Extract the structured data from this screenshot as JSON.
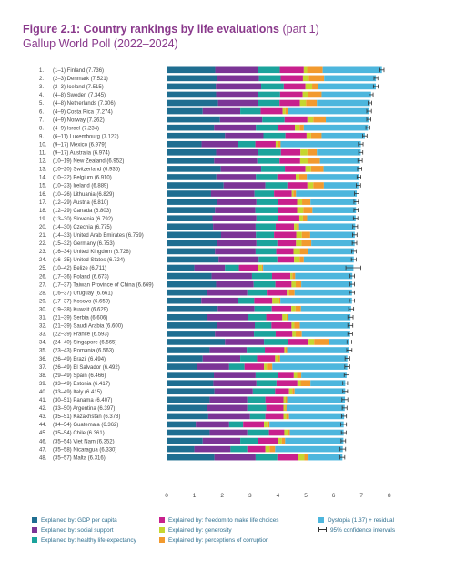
{
  "header": {
    "title_bold": "Figure 2.1: Country rankings by life evaluations",
    "title_rest": "(part 1)",
    "subtitle": "Gallup World Poll (2022–2024)"
  },
  "legend": [
    {
      "label": "Explained by: GDP per capita",
      "color": "#1f6e91"
    },
    {
      "label": "Explained by: social support",
      "color": "#7b3596"
    },
    {
      "label": "Explained by: healthy life expectancy",
      "color": "#1ba39c"
    },
    {
      "label": "Explained by: freedom to make life choices",
      "color": "#c8208d"
    },
    {
      "label": "Explained by: generosity",
      "color": "#c6d630"
    },
    {
      "label": "Explained by: perceptions of corruption",
      "color": "#f29a2e"
    },
    {
      "label": "Dystopia (1.37) + residual",
      "color": "#4db6dd"
    },
    {
      "label": "95% confidence intervals",
      "color": "#333333"
    }
  ],
  "chart_data": {
    "type": "bar",
    "stacked": true,
    "orientation": "horizontal",
    "xlim": [
      0,
      8
    ],
    "xticks": [
      "0",
      "1",
      "2",
      "3",
      "4",
      "5",
      "6",
      "7",
      "8"
    ],
    "component_colors": [
      "#1f6e91",
      "#7b3596",
      "#1ba39c",
      "#c8208d",
      "#c6d630",
      "#f29a2e",
      "#4db6dd"
    ],
    "categories": [
      {
        "rank": "1.",
        "label": "(1–1) Finland (7.736)",
        "value": 7.736,
        "ci": [
          7.66,
          7.81
        ],
        "parts": [
          1.75,
          1.55,
          0.77,
          0.86,
          0.12,
          0.56
        ]
      },
      {
        "rank": "2.",
        "label": "(2–3) Denmark (7.521)",
        "value": 7.521,
        "ci": [
          7.45,
          7.59
        ],
        "parts": [
          1.82,
          1.5,
          0.78,
          0.8,
          0.21,
          0.55
        ]
      },
      {
        "rank": "3.",
        "label": "(2–3) Iceland (7.515)",
        "value": 7.515,
        "ci": [
          7.43,
          7.6
        ],
        "parts": [
          1.77,
          1.63,
          0.81,
          0.78,
          0.24,
          0.2
        ]
      },
      {
        "rank": "4.",
        "label": "(4–8) Sweden (7.345)",
        "value": 7.345,
        "ci": [
          7.27,
          7.42
        ],
        "parts": [
          1.78,
          1.5,
          0.8,
          0.81,
          0.2,
          0.48
        ]
      },
      {
        "rank": "5.",
        "label": "(4–8) Netherlands (7.306)",
        "value": 7.306,
        "ci": [
          7.24,
          7.37
        ],
        "parts": [
          1.85,
          1.43,
          0.78,
          0.73,
          0.22,
          0.39
        ]
      },
      {
        "rank": "6.",
        "label": "(4–9) Costa Rica (7.274)",
        "value": 7.274,
        "ci": [
          7.19,
          7.36
        ],
        "parts": [
          1.3,
          1.35,
          0.73,
          0.79,
          0.1,
          0.09
        ]
      },
      {
        "rank": "7.",
        "label": "(4–9) Norway (7.262)",
        "value": 7.262,
        "ci": [
          7.19,
          7.34
        ],
        "parts": [
          1.92,
          1.52,
          0.8,
          0.82,
          0.21,
          0.45
        ]
      },
      {
        "rank": "8.",
        "label": "(4–9) Israel (7.234)",
        "value": 7.234,
        "ci": [
          7.16,
          7.3
        ],
        "parts": [
          1.71,
          1.5,
          0.8,
          0.6,
          0.17,
          0.15
        ]
      },
      {
        "rank": "9.",
        "label": "(6–11) Luxembourg (7.122)",
        "value": 7.122,
        "ci": [
          7.04,
          7.2
        ],
        "parts": [
          2.1,
          1.38,
          0.79,
          0.76,
          0.16,
          0.38
        ]
      },
      {
        "rank": "10.",
        "label": "(9–17) Mexico (6.979)",
        "value": 6.979,
        "ci": [
          6.89,
          7.06
        ],
        "parts": [
          1.26,
          1.29,
          0.64,
          0.73,
          0.08,
          0.1
        ]
      },
      {
        "rank": "11.",
        "label": "(9–17) Australia (6.974)",
        "value": 6.974,
        "ci": [
          6.9,
          7.05
        ],
        "parts": [
          1.78,
          1.5,
          0.83,
          0.7,
          0.25,
          0.34
        ]
      },
      {
        "rank": "12.",
        "label": "(10–19) New Zealand (6.952)",
        "value": 6.952,
        "ci": [
          6.87,
          7.03
        ],
        "parts": [
          1.71,
          1.55,
          0.8,
          0.74,
          0.27,
          0.44
        ]
      },
      {
        "rank": "13.",
        "label": "(10–20) Switzerland (6.935)",
        "value": 6.935,
        "ci": [
          6.86,
          7.01
        ],
        "parts": [
          1.95,
          1.45,
          0.85,
          0.74,
          0.2,
          0.45
        ]
      },
      {
        "rank": "14.",
        "label": "(10–22) Belgium (6.910)",
        "value": 6.91,
        "ci": [
          6.84,
          6.98
        ],
        "parts": [
          1.79,
          1.42,
          0.77,
          0.66,
          0.13,
          0.27
        ]
      },
      {
        "rank": "15.",
        "label": "(10–23) Ireland (6.889)",
        "value": 6.889,
        "ci": [
          6.81,
          6.97
        ],
        "parts": [
          2.05,
          1.5,
          0.79,
          0.72,
          0.21,
          0.38
        ]
      },
      {
        "rank": "16.",
        "label": "(10–26) Lithuania (6.829)",
        "value": 6.829,
        "ci": [
          6.75,
          6.91
        ],
        "parts": [
          1.6,
          1.56,
          0.7,
          0.64,
          0.05,
          0.1
        ]
      },
      {
        "rank": "17.",
        "label": "(12–29) Austria (6.810)",
        "value": 6.81,
        "ci": [
          6.73,
          6.89
        ],
        "parts": [
          1.8,
          1.43,
          0.78,
          0.68,
          0.18,
          0.3
        ]
      },
      {
        "rank": "18.",
        "label": "(12–29) Canada (6.803)",
        "value": 6.803,
        "ci": [
          6.73,
          6.88
        ],
        "parts": [
          1.74,
          1.45,
          0.8,
          0.7,
          0.22,
          0.33
        ]
      },
      {
        "rank": "19.",
        "label": "(13–30) Slovenia (6.792)",
        "value": 6.792,
        "ci": [
          6.71,
          6.87
        ],
        "parts": [
          1.65,
          1.58,
          0.76,
          0.78,
          0.13,
          0.15
        ]
      },
      {
        "rank": "20.",
        "label": "(14–30) Czechia (6.775)",
        "value": 6.775,
        "ci": [
          6.69,
          6.86
        ],
        "parts": [
          1.67,
          1.53,
          0.72,
          0.66,
          0.1,
          0.08
        ]
      },
      {
        "rank": "21.",
        "label": "(14–33) United Arab Emirates (6.759)",
        "value": 6.759,
        "ci": [
          6.68,
          6.84
        ],
        "parts": [
          1.96,
          1.25,
          0.65,
          0.8,
          0.2,
          0.3
        ]
      },
      {
        "rank": "22.",
        "label": "(15–32) Germany (6.753)",
        "value": 6.753,
        "ci": [
          6.67,
          6.83
        ],
        "parts": [
          1.8,
          1.43,
          0.75,
          0.67,
          0.2,
          0.35
        ]
      },
      {
        "rank": "23.",
        "label": "(16–34) United Kingdom (6.728)",
        "value": 6.728,
        "ci": [
          6.65,
          6.81
        ],
        "parts": [
          1.74,
          1.46,
          0.74,
          0.62,
          0.23,
          0.3
        ]
      },
      {
        "rank": "24.",
        "label": "(16–35) United States (6.724)",
        "value": 6.724,
        "ci": [
          6.64,
          6.81
        ],
        "parts": [
          1.87,
          1.44,
          0.67,
          0.6,
          0.2,
          0.15
        ]
      },
      {
        "rank": "25.",
        "label": "(10–42) Belize (6.711)",
        "value": 6.711,
        "ci": [
          6.44,
          6.98
        ],
        "parts": [
          1.0,
          1.1,
          0.5,
          0.7,
          0.12,
          0.05
        ]
      },
      {
        "rank": "26.",
        "label": "(17–36) Poland (6.673)",
        "value": 6.673,
        "ci": [
          6.59,
          6.75
        ],
        "parts": [
          1.62,
          1.45,
          0.72,
          0.66,
          0.07,
          0.1
        ]
      },
      {
        "rank": "27.",
        "label": "(17–37) Taiwan Province of China (6.669)",
        "value": 6.669,
        "ci": [
          6.59,
          6.75
        ],
        "parts": [
          1.78,
          1.35,
          0.78,
          0.58,
          0.15,
          0.2
        ]
      },
      {
        "rank": "28.",
        "label": "(16–37) Uruguay (6.661)",
        "value": 6.661,
        "ci": [
          6.57,
          6.75
        ],
        "parts": [
          1.45,
          1.45,
          0.7,
          0.72,
          0.08,
          0.2
        ]
      },
      {
        "rank": "29.",
        "label": "(17–37) Kosovo (6.659)",
        "value": 6.659,
        "ci": [
          6.57,
          6.75
        ],
        "parts": [
          1.25,
          1.3,
          0.6,
          0.65,
          0.25,
          0.04
        ]
      },
      {
        "rank": "30.",
        "label": "(19–38) Kuwait (6.629)",
        "value": 6.629,
        "ci": [
          6.54,
          6.72
        ],
        "parts": [
          1.84,
          1.32,
          0.62,
          0.7,
          0.15,
          0.2
        ]
      },
      {
        "rank": "31.",
        "label": "(21–39) Serbia (6.606)",
        "value": 6.606,
        "ci": [
          6.51,
          6.7
        ],
        "parts": [
          1.45,
          1.48,
          0.65,
          0.58,
          0.15,
          0.05
        ]
      },
      {
        "rank": "32.",
        "label": "(21–39) Saudi Arabia (6.600)",
        "value": 6.6,
        "ci": [
          6.51,
          6.69
        ],
        "parts": [
          1.82,
          1.35,
          0.6,
          0.72,
          0.1,
          0.2
        ]
      },
      {
        "rank": "33.",
        "label": "(22–39) France (6.593)",
        "value": 6.593,
        "ci": [
          6.51,
          6.68
        ],
        "parts": [
          1.74,
          1.4,
          0.78,
          0.6,
          0.12,
          0.22
        ]
      },
      {
        "rank": "34.",
        "label": "(24–40) Singapore (6.565)",
        "value": 6.565,
        "ci": [
          6.48,
          6.65
        ],
        "parts": [
          2.1,
          1.4,
          0.85,
          0.75,
          0.2,
          0.55
        ]
      },
      {
        "rank": "35.",
        "label": "(23–43) Romania (6.563)",
        "value": 6.563,
        "ci": [
          6.47,
          6.66
        ],
        "parts": [
          1.55,
          1.33,
          0.65,
          0.7,
          0.05,
          0.05
        ]
      },
      {
        "rank": "36.",
        "label": "(26–49) Brazil (6.494)",
        "value": 6.494,
        "ci": [
          6.41,
          6.58
        ],
        "parts": [
          1.3,
          1.35,
          0.6,
          0.65,
          0.1,
          0.08
        ]
      },
      {
        "rank": "37.",
        "label": "(26–49) El Salvador (6.492)",
        "value": 6.492,
        "ci": [
          6.4,
          6.58
        ],
        "parts": [
          1.1,
          1.15,
          0.55,
          0.7,
          0.1,
          0.2
        ]
      },
      {
        "rank": "38.",
        "label": "(29–49) Spain (6.466)",
        "value": 6.466,
        "ci": [
          6.38,
          6.55
        ],
        "parts": [
          1.7,
          1.5,
          0.82,
          0.55,
          0.12,
          0.15
        ]
      },
      {
        "rank": "39.",
        "label": "(33–49) Estonia (6.417)",
        "value": 6.417,
        "ci": [
          6.33,
          6.5
        ],
        "parts": [
          1.68,
          1.55,
          0.72,
          0.75,
          0.12,
          0.35
        ]
      },
      {
        "rank": "40.",
        "label": "(33–49) Italy (6.415)",
        "value": 6.415,
        "ci": [
          6.33,
          6.5
        ],
        "parts": [
          1.72,
          1.38,
          0.8,
          0.5,
          0.12,
          0.08
        ]
      },
      {
        "rank": "41.",
        "label": "(30–51) Panama (6.407)",
        "value": 6.407,
        "ci": [
          6.3,
          6.51
        ],
        "parts": [
          1.55,
          1.35,
          0.65,
          0.65,
          0.08,
          0.05
        ]
      },
      {
        "rank": "42.",
        "label": "(33–50) Argentina (6.397)",
        "value": 6.397,
        "ci": [
          6.31,
          6.48
        ],
        "parts": [
          1.45,
          1.45,
          0.68,
          0.62,
          0.06,
          0.05
        ]
      },
      {
        "rank": "43.",
        "label": "(35–51) Kazakhstan (6.378)",
        "value": 6.378,
        "ci": [
          6.29,
          6.46
        ],
        "parts": [
          1.5,
          1.5,
          0.55,
          0.65,
          0.1,
          0.1
        ]
      },
      {
        "rank": "44.",
        "label": "(34–54) Guatemala (6.362)",
        "value": 6.362,
        "ci": [
          6.26,
          6.46
        ],
        "parts": [
          1.05,
          1.2,
          0.5,
          0.75,
          0.12,
          0.08
        ]
      },
      {
        "rank": "45.",
        "label": "(35–54) Chile (6.361)",
        "value": 6.361,
        "ci": [
          6.28,
          6.45
        ],
        "parts": [
          1.55,
          1.35,
          0.78,
          0.55,
          0.12,
          0.08
        ]
      },
      {
        "rank": "46.",
        "label": "(35–54) Viet Nam (6.352)",
        "value": 6.352,
        "ci": [
          6.27,
          6.43
        ],
        "parts": [
          1.3,
          1.35,
          0.62,
          0.75,
          0.12,
          0.12
        ]
      },
      {
        "rank": "47.",
        "label": "(35–58) Nicaragua (6.330)",
        "value": 6.33,
        "ci": [
          6.23,
          6.43
        ],
        "parts": [
          1.0,
          1.3,
          0.6,
          0.65,
          0.15,
          0.2
        ]
      },
      {
        "rank": "48.",
        "label": "(35–57) Malta (6.316)",
        "value": 6.316,
        "ci": [
          6.23,
          6.4
        ],
        "parts": [
          1.72,
          1.48,
          0.78,
          0.75,
          0.22,
          0.15
        ]
      }
    ]
  }
}
